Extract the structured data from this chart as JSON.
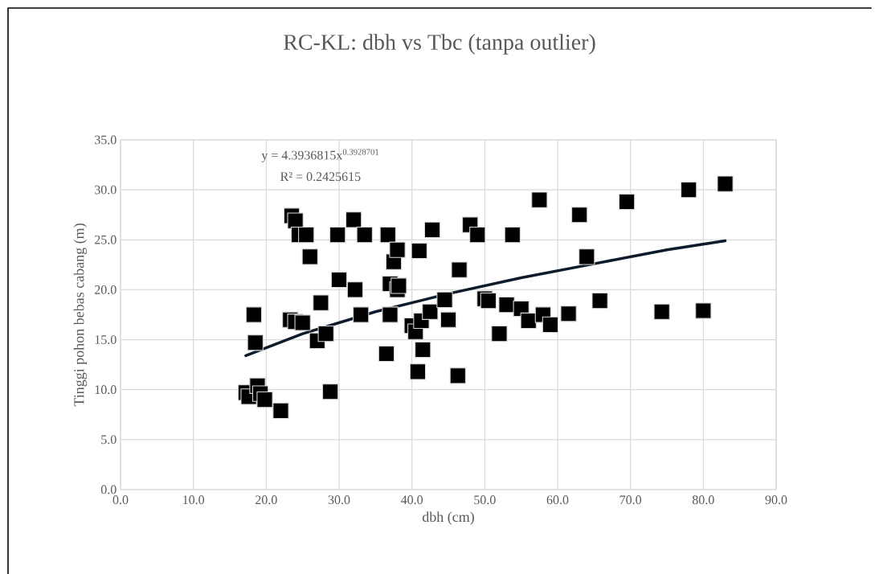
{
  "chart_data": {
    "type": "scatter",
    "title": "RC-KL: dbh vs Tbc (tanpa outlier)",
    "xlabel": "dbh (cm)",
    "ylabel": "Tinggi pohon bebas cabang (m)",
    "xlim": [
      0,
      90
    ],
    "ylim": [
      0,
      35
    ],
    "xticks": [
      {
        "value": 0,
        "label": "0.0"
      },
      {
        "value": 10,
        "label": "10.0"
      },
      {
        "value": 20,
        "label": "20.0"
      },
      {
        "value": 30,
        "label": "30.0"
      },
      {
        "value": 40,
        "label": "40.0"
      },
      {
        "value": 50,
        "label": "50.0"
      },
      {
        "value": 60,
        "label": "60.0"
      },
      {
        "value": 70,
        "label": "70.0"
      },
      {
        "value": 80,
        "label": "80.0"
      },
      {
        "value": 90,
        "label": "90.0"
      }
    ],
    "yticks": [
      {
        "value": 0,
        "label": "0.0"
      },
      {
        "value": 5,
        "label": "5.0"
      },
      {
        "value": 10,
        "label": "10.0"
      },
      {
        "value": 15,
        "label": "15.0"
      },
      {
        "value": 20,
        "label": "20.0"
      },
      {
        "value": 25,
        "label": "25.0"
      },
      {
        "value": 30,
        "label": "30.0"
      },
      {
        "value": 35,
        "label": "35.0"
      }
    ],
    "grid": true,
    "marker": "square",
    "annotations": [
      "y = 4.3936815x$^{0.3928701}$",
      "R² = 0.2425615"
    ],
    "series": [
      {
        "color": "#000000",
        "x": [
          17.2,
          17.6,
          18.3,
          18.5,
          18.8,
          19.2,
          19.8,
          22.0,
          23.5,
          24.0,
          24.5,
          25.5,
          26.0,
          23.3,
          24.0,
          25.0,
          27.5,
          27.0,
          28.2,
          28.8,
          29.8,
          30.0,
          32.0,
          32.2,
          33.0,
          33.5,
          36.5,
          36.7,
          37.0,
          37.0,
          37.5,
          38.0,
          38.0,
          38.2,
          40.0,
          40.5,
          40.8,
          41.0,
          41.3,
          41.5,
          42.5,
          42.8,
          44.5,
          45.0,
          46.3,
          46.5,
          48.0,
          49.0,
          50.0,
          50.5,
          52.0,
          53.0,
          53.8,
          55.0,
          56.0,
          57.5,
          58.0,
          59.0,
          61.5,
          63.0,
          64.0,
          65.8,
          69.5,
          74.3,
          78.0,
          80.0,
          83.0
        ],
        "values": [
          9.7,
          9.3,
          17.5,
          14.7,
          10.4,
          9.6,
          9.0,
          7.9,
          27.4,
          26.9,
          25.5,
          25.5,
          23.3,
          17.0,
          16.8,
          16.7,
          18.7,
          14.9,
          15.6,
          9.8,
          25.5,
          21.0,
          27.0,
          20.0,
          17.5,
          25.5,
          13.6,
          25.5,
          20.6,
          17.5,
          22.8,
          24.0,
          20.0,
          20.4,
          16.4,
          15.8,
          11.8,
          23.9,
          16.9,
          14.0,
          17.8,
          26.0,
          19.0,
          17.0,
          11.4,
          22.0,
          26.5,
          25.5,
          19.1,
          18.9,
          15.6,
          18.5,
          25.5,
          18.1,
          16.9,
          29.0,
          17.5,
          16.5,
          17.6,
          27.5,
          23.3,
          18.9,
          28.8,
          17.8,
          30.0,
          17.9,
          30.6
        ]
      },
      {
        "type": "line",
        "color": "#0d1b2a",
        "marker": "none",
        "x": [
          17.2,
          25,
          35,
          45,
          55,
          65,
          75,
          83
        ],
        "values": [
          13.4,
          15.6,
          17.8,
          19.6,
          21.2,
          22.6,
          24.0,
          24.9
        ]
      }
    ]
  }
}
